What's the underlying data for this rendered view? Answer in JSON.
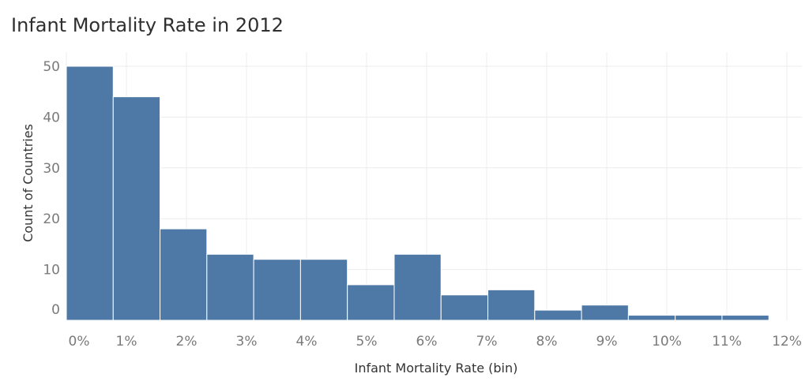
{
  "chart_data": {
    "type": "bar",
    "title": "Infant Mortality Rate in 2012",
    "xlabel": "Infant Mortality Rate (bin)",
    "ylabel": "Count of Countries",
    "bins": [
      {
        "start": 0.0,
        "end": 0.78,
        "count": 50
      },
      {
        "start": 0.78,
        "end": 1.56,
        "count": 44
      },
      {
        "start": 1.56,
        "end": 2.34,
        "count": 18
      },
      {
        "start": 2.34,
        "end": 3.12,
        "count": 13
      },
      {
        "start": 3.12,
        "end": 3.9,
        "count": 12
      },
      {
        "start": 3.9,
        "end": 4.68,
        "count": 12
      },
      {
        "start": 4.68,
        "end": 5.46,
        "count": 7
      },
      {
        "start": 5.46,
        "end": 6.24,
        "count": 13
      },
      {
        "start": 6.24,
        "end": 7.02,
        "count": 5
      },
      {
        "start": 7.02,
        "end": 7.8,
        "count": 6
      },
      {
        "start": 7.8,
        "end": 8.58,
        "count": 2
      },
      {
        "start": 8.58,
        "end": 9.36,
        "count": 3
      },
      {
        "start": 9.36,
        "end": 10.14,
        "count": 1
      },
      {
        "start": 10.14,
        "end": 10.92,
        "count": 1
      },
      {
        "start": 10.92,
        "end": 11.7,
        "count": 1
      }
    ],
    "xticks": [
      "0%",
      "1%",
      "2%",
      "3%",
      "4%",
      "5%",
      "6%",
      "7%",
      "8%",
      "9%",
      "10%",
      "11%",
      "12%"
    ],
    "yticks": [
      "0",
      "10",
      "20",
      "30",
      "40",
      "50"
    ],
    "xlim": [
      0,
      12
    ],
    "ylim": [
      0,
      50
    ],
    "grid": true,
    "bar_color": "#4e79a7"
  }
}
